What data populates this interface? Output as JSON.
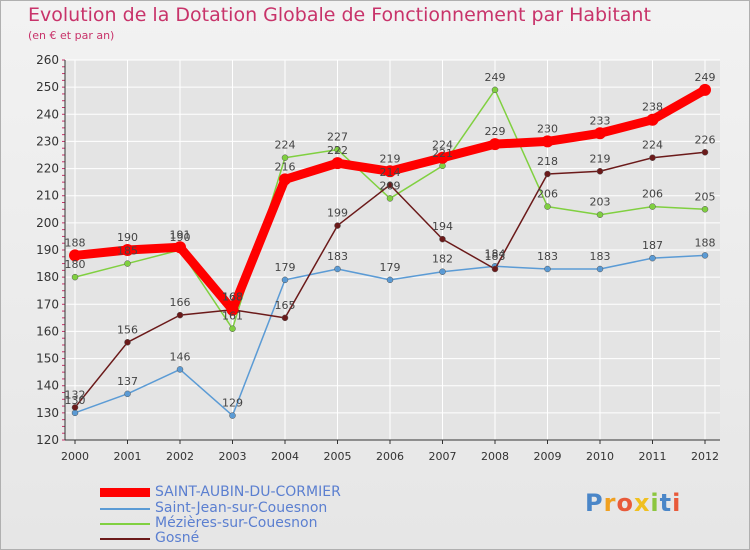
{
  "title": "Evolution de la Dotation Globale de Fonctionnement par Habitant",
  "subtitle": "(en € et par an)",
  "logo": [
    "P",
    "r",
    "o",
    "x",
    "i",
    "t",
    "i"
  ],
  "colors": {
    "title": "#c8336a",
    "grid": "#ffffff",
    "axis": "#333333",
    "tick_mark": "#c8336a"
  },
  "chart_data": {
    "type": "line",
    "title": "Evolution de la Dotation Globale de Fonctionnement par Habitant",
    "subtitle": "(en € et par an)",
    "x": [
      2000,
      2001,
      2002,
      2003,
      2004,
      2005,
      2006,
      2007,
      2008,
      2009,
      2010,
      2011,
      2012
    ],
    "ylim": [
      120,
      260
    ],
    "yticks": [
      120,
      130,
      140,
      150,
      160,
      170,
      180,
      190,
      200,
      210,
      220,
      230,
      240,
      250,
      260
    ],
    "grid": true,
    "legend_position": "bottom-left",
    "series": [
      {
        "name": "SAINT-AUBIN-DU-CORMIER",
        "color": "#ff0000",
        "values": [
          188,
          190,
          191,
          168,
          216,
          222,
          219,
          224,
          229,
          230,
          233,
          238,
          249
        ]
      },
      {
        "name": "Saint-Jean-sur-Couesnon",
        "color": "#5b9bd5",
        "values": [
          130,
          137,
          146,
          129,
          179,
          183,
          179,
          182,
          184,
          183,
          183,
          187,
          188
        ]
      },
      {
        "name": "Mézières-sur-Couesnon",
        "color": "#80d040",
        "values": [
          180,
          185,
          190,
          161,
          224,
          227,
          209,
          221,
          249,
          206,
          203,
          206,
          205
        ]
      },
      {
        "name": "Gosné",
        "color": "#6b1a1a",
        "values": [
          132,
          156,
          166,
          168,
          165,
          199,
          214,
          194,
          183,
          218,
          219,
          224,
          226
        ]
      }
    ]
  }
}
